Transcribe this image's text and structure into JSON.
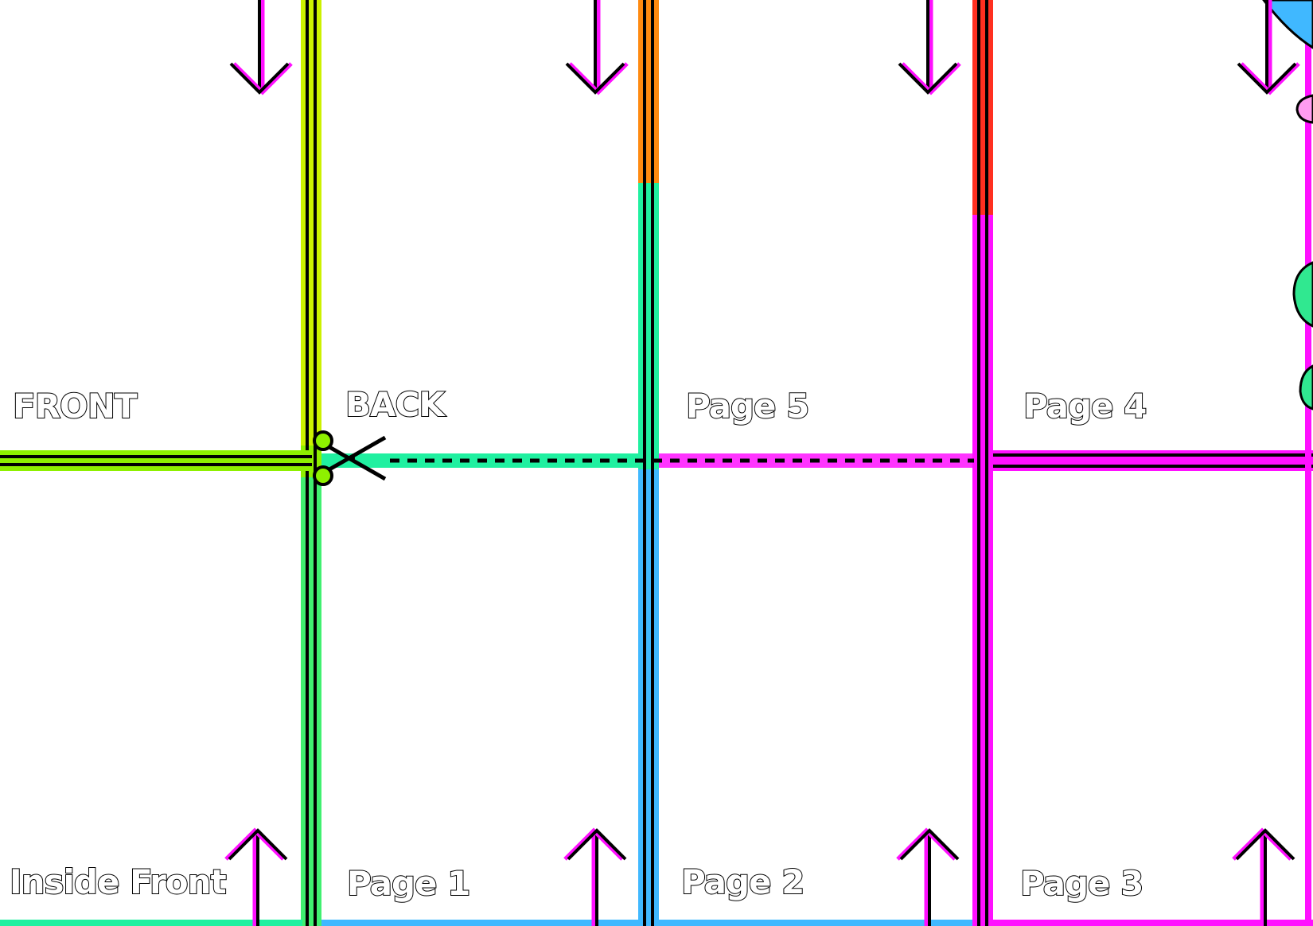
{
  "panels": {
    "top": [
      {
        "id": "front",
        "label": "FRONT",
        "fold_arrow": "down"
      },
      {
        "id": "back",
        "label": "BACK",
        "fold_arrow": "down"
      },
      {
        "id": "page5",
        "label": "Page 5",
        "fold_arrow": "down"
      },
      {
        "id": "page4",
        "label": "Page 4",
        "fold_arrow": "down"
      }
    ],
    "bottom": [
      {
        "id": "inside-front",
        "label": "Inside Front",
        "fold_arrow": "up"
      },
      {
        "id": "page1",
        "label": "Page 1",
        "fold_arrow": "up"
      },
      {
        "id": "page2",
        "label": "Page 2",
        "fold_arrow": "up"
      },
      {
        "id": "page3",
        "label": "Page 3",
        "fold_arrow": "up"
      }
    ]
  },
  "icons": {
    "cut_guide": "scissors-icon",
    "fold_down": "arrow-down-icon",
    "fold_up": "arrow-up-icon"
  },
  "colors": {
    "lime": "#8ef000",
    "yellow": "#fff200",
    "aqua": "#20f0a0",
    "sky": "#40b8ff",
    "orange": "#ff8a10",
    "magenta": "#ff10ff",
    "red": "#ff3020",
    "black": "#000000"
  }
}
